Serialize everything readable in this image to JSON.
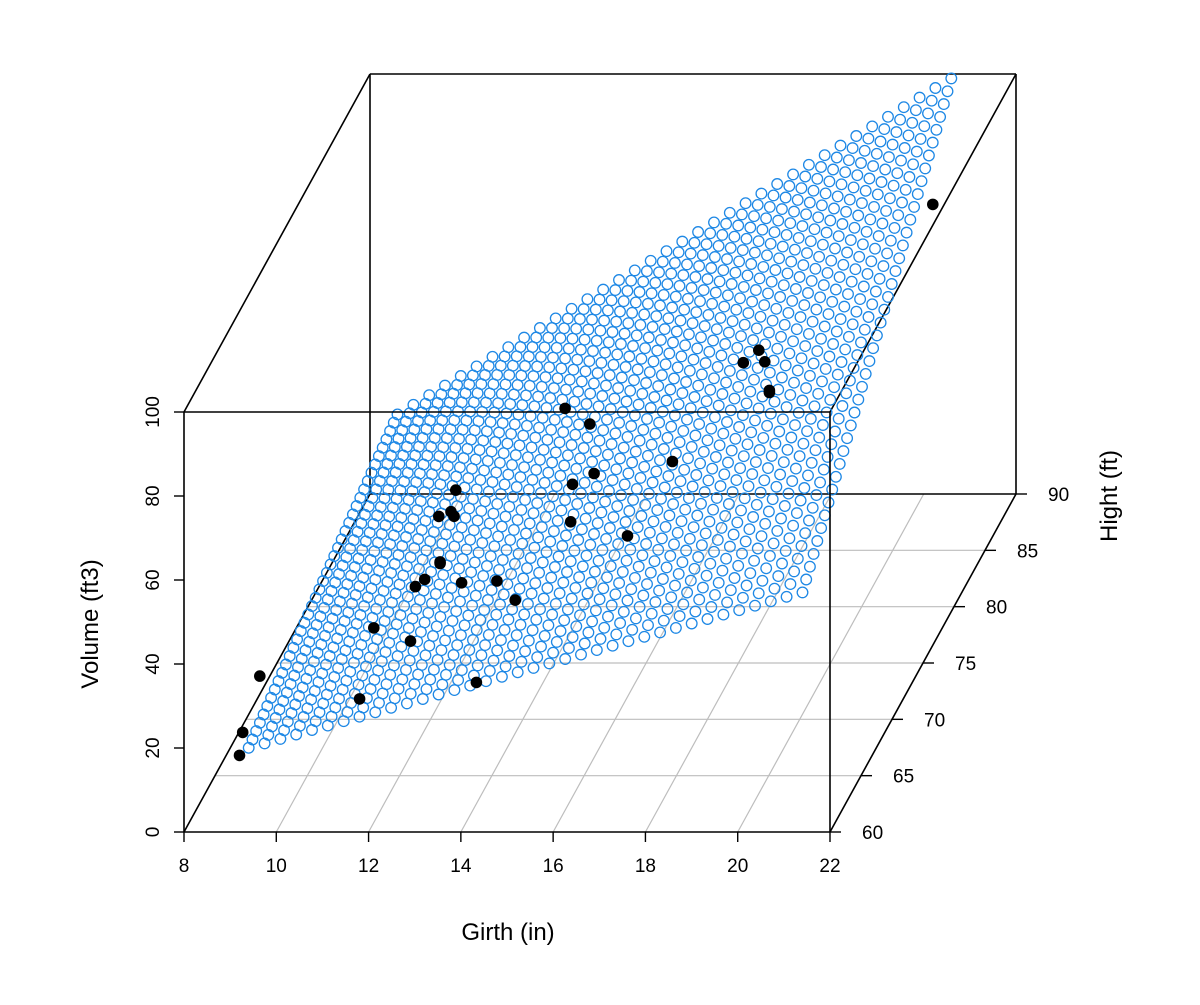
{
  "chart_data": {
    "type": "scatter3d",
    "title": "",
    "xlabel": "Girth (in)",
    "ylabel": "Hight (ft)",
    "zlabel": "Volume (ft3)",
    "xlim": [
      8,
      22
    ],
    "ylim": [
      60,
      90
    ],
    "zlim": [
      0,
      100
    ],
    "x_ticks": [
      "8",
      "10",
      "12",
      "14",
      "16",
      "18",
      "20",
      "22"
    ],
    "y_ticks": [
      "60",
      "65",
      "70",
      "75",
      "80",
      "85",
      "90"
    ],
    "z_ticks": [
      "0",
      "20",
      "40",
      "60",
      "80",
      "100"
    ],
    "grid": true,
    "surface": {
      "type": "regression-plane",
      "style": "open-circles",
      "color": "#1e88e5",
      "girth_range": [
        9.0,
        21.0
      ],
      "height_range": [
        63,
        87
      ],
      "volume_at_corners": {
        "girth_min_height_min": 12,
        "girth_max_height_min": 49,
        "girth_min_height_max": 27,
        "girth_max_height_max": 107
      }
    },
    "points_color": "#000000",
    "points": [
      {
        "girth": 8.3,
        "height": 70,
        "volume": 10.3
      },
      {
        "girth": 8.6,
        "height": 65,
        "volume": 10.3
      },
      {
        "girth": 8.8,
        "height": 63,
        "volume": 10.2
      },
      {
        "girth": 10.5,
        "height": 72,
        "volume": 16.4
      },
      {
        "girth": 10.7,
        "height": 81,
        "volume": 18.8
      },
      {
        "girth": 10.8,
        "height": 83,
        "volume": 19.7
      },
      {
        "girth": 11.0,
        "height": 66,
        "volume": 15.6
      },
      {
        "girth": 11.0,
        "height": 75,
        "volume": 18.2
      },
      {
        "girth": 11.1,
        "height": 80,
        "volume": 22.6
      },
      {
        "girth": 11.2,
        "height": 75,
        "volume": 19.9
      },
      {
        "girth": 11.3,
        "height": 79,
        "volume": 24.2
      },
      {
        "girth": 11.4,
        "height": 76,
        "volume": 21.0
      },
      {
        "girth": 11.4,
        "height": 76,
        "volume": 21.4
      },
      {
        "girth": 11.7,
        "height": 69,
        "volume": 21.3
      },
      {
        "girth": 12.0,
        "height": 75,
        "volume": 19.1
      },
      {
        "girth": 12.9,
        "height": 74,
        "volume": 22.2
      },
      {
        "girth": 12.9,
        "height": 85,
        "volume": 33.8
      },
      {
        "girth": 13.3,
        "height": 86,
        "volume": 27.4
      },
      {
        "girth": 13.7,
        "height": 71,
        "volume": 25.7
      },
      {
        "girth": 13.8,
        "height": 64,
        "volume": 24.9
      },
      {
        "girth": 14.0,
        "height": 78,
        "volume": 34.5
      },
      {
        "girth": 14.2,
        "height": 80,
        "volume": 31.7
      },
      {
        "girth": 14.5,
        "height": 74,
        "volume": 36.3
      },
      {
        "girth": 16.0,
        "height": 72,
        "volume": 38.3
      },
      {
        "girth": 16.3,
        "height": 77,
        "volume": 42.6
      },
      {
        "girth": 17.3,
        "height": 81,
        "volume": 55.4
      },
      {
        "girth": 17.5,
        "height": 82,
        "volume": 55.7
      },
      {
        "girth": 17.9,
        "height": 80,
        "volume": 58.3
      },
      {
        "girth": 18.0,
        "height": 80,
        "volume": 51.5
      },
      {
        "girth": 18.0,
        "height": 80,
        "volume": 51.0
      },
      {
        "girth": 20.6,
        "height": 87,
        "volume": 77.0
      }
    ]
  }
}
